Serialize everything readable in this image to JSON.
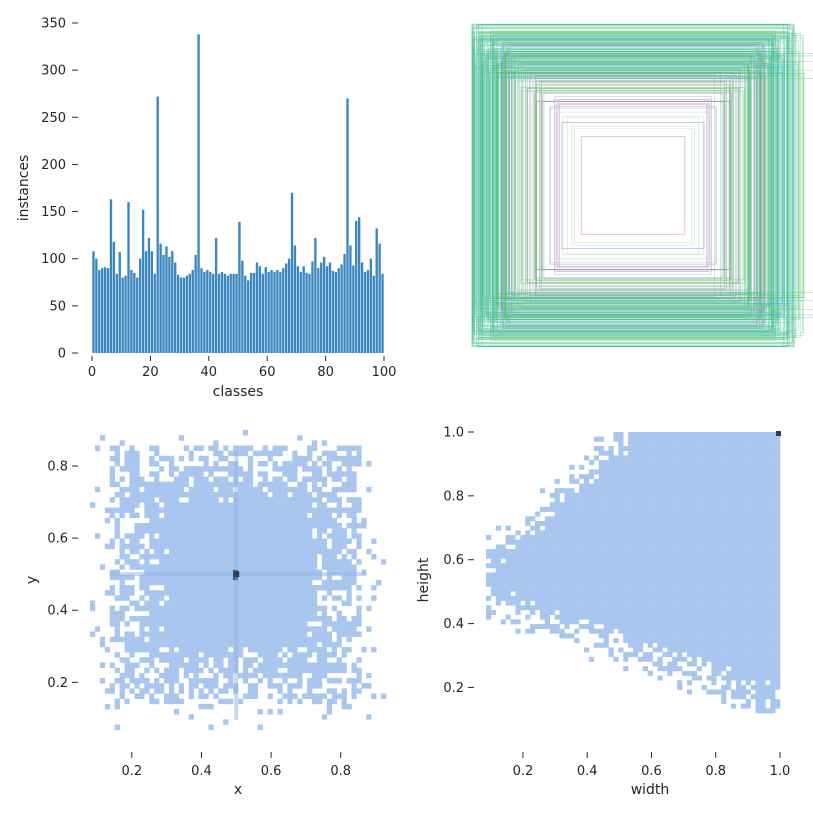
{
  "colors": {
    "bar": "#3a87bf",
    "hist_light": "#a9c6ef",
    "hist_dark": "#2f3e55",
    "box_palette": [
      "#36b8c8",
      "#3cbf93",
      "#62c25e",
      "#a8d4a0",
      "#a07cc8",
      "#c76fb7",
      "#d9a0c6",
      "#7bc6d6",
      "#b6dbb1"
    ]
  },
  "chart_data": [
    {
      "type": "bar",
      "xlabel": "classes",
      "ylabel": "instances",
      "xlim": [
        0,
        100
      ],
      "ylim": [
        0,
        350
      ],
      "xticks": [
        "0",
        "20",
        "40",
        "60",
        "80",
        "100"
      ],
      "yticks": [
        "0",
        "50",
        "100",
        "150",
        "200",
        "250",
        "300",
        "350"
      ],
      "categories": [
        0,
        1,
        2,
        3,
        4,
        5,
        6,
        7,
        8,
        9,
        10,
        11,
        12,
        13,
        14,
        15,
        16,
        17,
        18,
        19,
        20,
        21,
        22,
        23,
        24,
        25,
        26,
        27,
        28,
        29,
        30,
        31,
        32,
        33,
        34,
        35,
        36,
        37,
        38,
        39,
        40,
        41,
        42,
        43,
        44,
        45,
        46,
        47,
        48,
        49,
        50,
        51,
        52,
        53,
        54,
        55,
        56,
        57,
        58,
        59,
        60,
        61,
        62,
        63,
        64,
        65,
        66,
        67,
        68,
        69,
        70,
        71,
        72,
        73,
        74,
        75,
        76,
        77,
        78,
        79,
        80,
        81,
        82,
        83,
        84,
        85,
        86,
        87,
        88,
        89,
        90,
        91,
        92,
        93,
        94,
        95,
        96,
        97,
        98,
        99
      ],
      "values": [
        108,
        100,
        88,
        90,
        91,
        90,
        163,
        118,
        84,
        107,
        80,
        82,
        160,
        88,
        85,
        80,
        100,
        152,
        108,
        122,
        108,
        84,
        272,
        116,
        104,
        113,
        102,
        108,
        96,
        83,
        80,
        80,
        82,
        84,
        88,
        104,
        338,
        90,
        86,
        88,
        86,
        84,
        122,
        84,
        86,
        84,
        82,
        84,
        84,
        84,
        139,
        98,
        82,
        77,
        85,
        85,
        96,
        92,
        84,
        91,
        86,
        88,
        86,
        88,
        86,
        90,
        95,
        100,
        170,
        114,
        92,
        86,
        92,
        85,
        84,
        97,
        122,
        90,
        96,
        102,
        92,
        96,
        87,
        86,
        90,
        94,
        105,
        270,
        114,
        93,
        140,
        144,
        96,
        86,
        88,
        100,
        82,
        132,
        116,
        84
      ]
    },
    {
      "type": "other",
      "description_free": true,
      "boxes_count": 100
    },
    {
      "type": "heatmap",
      "xlabel": "x",
      "ylabel": "y",
      "xlim": [
        0.08,
        0.93
      ],
      "ylim": [
        0.04,
        0.9
      ],
      "xticks": [
        "0.2",
        "0.4",
        "0.6",
        "0.8"
      ],
      "yticks": [
        "0.2",
        "0.4",
        "0.6",
        "0.8"
      ],
      "peak": [
        0.5,
        0.5
      ]
    },
    {
      "type": "heatmap",
      "xlabel": "width",
      "ylabel": "height",
      "xlim": [
        0.08,
        1.02
      ],
      "ylim": [
        0.08,
        1.02
      ],
      "xticks": [
        "0.2",
        "0.4",
        "0.6",
        "0.8",
        "1.0"
      ],
      "yticks": [
        "0.2",
        "0.4",
        "0.6",
        "0.8",
        "1.0"
      ],
      "peak": [
        1.0,
        1.0
      ]
    }
  ]
}
